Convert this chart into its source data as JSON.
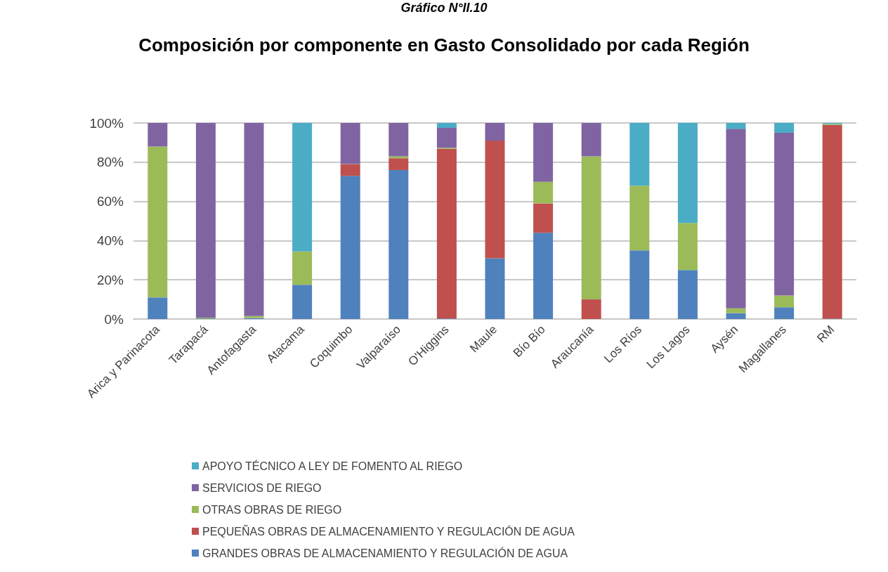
{
  "chart_data": {
    "type": "bar",
    "stacked": true,
    "title": "Composición por componente en Gasto Consolidado por cada Región",
    "annotations": [
      "Gráfico N°II.10"
    ],
    "categories": [
      "Arica y Parinacota",
      "Tarapacá",
      "Antofagasta",
      "Atacama",
      "Coquimbo",
      "Valparaíso",
      "O'Higgins",
      "Maule",
      "Bío Bío",
      "Araucanía",
      "Los Ríos",
      "Los Lagos",
      "Aysén",
      "Magallanes",
      "RM"
    ],
    "series": [
      {
        "name": "GRANDES OBRAS DE ALMACENAMIENTO Y REGULACIÓN DE AGUA",
        "color": "#4f81bd",
        "values": [
          11,
          0.3,
          0.5,
          17.5,
          73,
          76,
          0.3,
          31,
          44,
          0,
          35,
          25,
          3,
          6,
          0.2
        ]
      },
      {
        "name": "PEQUEÑAS OBRAS DE ALMACENAMIENTO Y REGULACIÓN DE AGUA",
        "color": "#c0504d",
        "values": [
          0,
          0,
          0,
          0,
          6,
          6,
          86.5,
          60,
          15,
          10,
          0,
          0,
          0,
          0,
          98.8
        ]
      },
      {
        "name": "OTRAS OBRAS DE RIEGO",
        "color": "#9bbb59",
        "values": [
          77,
          0.4,
          1,
          17,
          0,
          1,
          0.5,
          0,
          11,
          73,
          33,
          24,
          2.5,
          6,
          0.5
        ]
      },
      {
        "name": "SERVICIOS DE RIEGO",
        "color": "#8064a2",
        "values": [
          12,
          99.3,
          98.5,
          0,
          21,
          17,
          10.2,
          9,
          30,
          17,
          0,
          0,
          91.5,
          83,
          0
        ]
      },
      {
        "name": "APOYO TÉCNICO A LEY DE FOMENTO AL RIEGO",
        "color": "#4bacc6",
        "values": [
          0,
          0,
          0,
          65.5,
          0,
          0,
          2.5,
          0,
          0,
          0,
          32,
          51,
          3,
          5,
          0.5
        ]
      }
    ],
    "ylim": [
      0,
      100
    ],
    "yticks": [
      {
        "value": 0,
        "label": "0%"
      },
      {
        "value": 20,
        "label": "20%"
      },
      {
        "value": 40,
        "label": "40%"
      },
      {
        "value": 60,
        "label": "60%"
      },
      {
        "value": 80,
        "label": "80%"
      },
      {
        "value": 100,
        "label": "100%"
      }
    ],
    "grid": "y",
    "legend": "bottom"
  }
}
